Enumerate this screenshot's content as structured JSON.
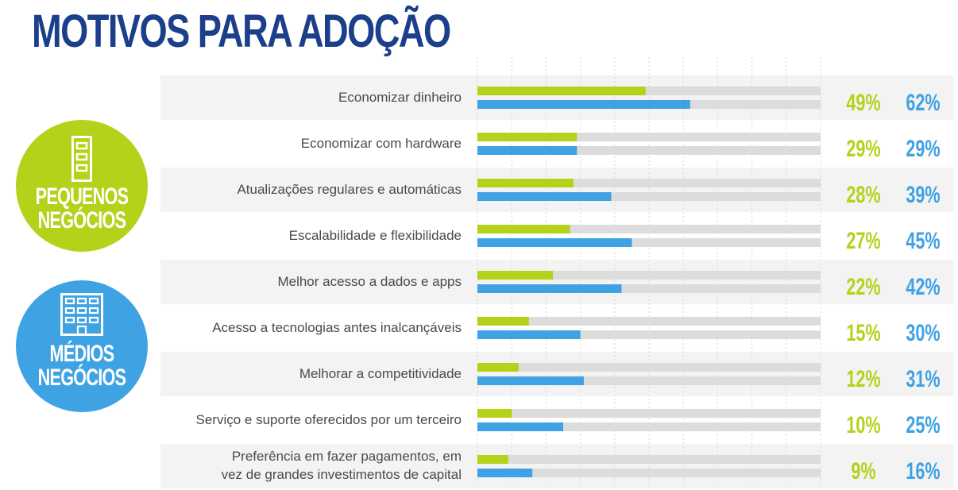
{
  "title": "MOTIVOS PARA ADOÇÃO",
  "legend": {
    "small": {
      "line1": "PEQUENOS",
      "line2": "NEGÓCIOS",
      "color": "#b4d21a",
      "icon": "small-building-icon"
    },
    "medium": {
      "line1": "MÉDIOS",
      "line2": "NEGÓCIOS",
      "color": "#3fa2e3",
      "icon": "large-building-icon"
    }
  },
  "chart_data": {
    "type": "bar",
    "orientation": "horizontal",
    "title": "MOTIVOS PARA ADOÇÃO",
    "xlim": [
      0,
      100
    ],
    "grid": true,
    "categories": [
      [
        "Economizar dinheiro"
      ],
      [
        "Economizar com hardware"
      ],
      [
        "Atualizações regulares e automáticas"
      ],
      [
        "Escalabilidade e flexibilidade"
      ],
      [
        "Melhor acesso a dados e apps"
      ],
      [
        "Acesso a tecnologias antes inalcançáveis"
      ],
      [
        "Melhorar a competitividade"
      ],
      [
        "Serviço e suporte oferecidos por um terceiro"
      ],
      [
        "Preferência em fazer pagamentos, em",
        "vez de grandes investimentos de capital"
      ]
    ],
    "series": [
      {
        "name": "PEQUENOS NEGÓCIOS",
        "color": "#b4d21a",
        "values": [
          49,
          29,
          28,
          27,
          22,
          15,
          12,
          10,
          9
        ],
        "labels": [
          "49%",
          "29%",
          "28%",
          "27%",
          "22%",
          "15%",
          "12%",
          "10%",
          "9%"
        ]
      },
      {
        "name": "MÉDIOS NEGÓCIOS",
        "color": "#3fa2e3",
        "values": [
          62,
          29,
          39,
          45,
          42,
          30,
          31,
          25,
          16
        ],
        "labels": [
          "62%",
          "29%",
          "39%",
          "45%",
          "42%",
          "30%",
          "31%",
          "25%",
          "16%"
        ]
      }
    ],
    "track_color": "#dcdcdc"
  }
}
